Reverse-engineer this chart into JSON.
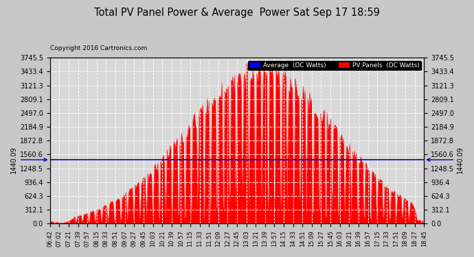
{
  "title": "Total PV Panel Power & Average  Power Sat Sep 17 18:59",
  "copyright": "Copyright 2016 Cartronics.com",
  "average_value": 1440.09,
  "average_label": "1440.09",
  "y_tick_labels": [
    "0.0",
    "312.1",
    "624.3",
    "936.4",
    "1248.5",
    "1560.6",
    "1872.8",
    "2184.9",
    "2497.0",
    "2809.1",
    "3121.3",
    "3433.4",
    "3745.5"
  ],
  "y_tick_values": [
    0.0,
    312.1,
    624.3,
    936.4,
    1248.5,
    1560.6,
    1872.8,
    2184.9,
    2497.0,
    2809.1,
    3121.3,
    3433.4,
    3745.5
  ],
  "x_tick_labels": [
    "06:42",
    "07:02",
    "07:21",
    "07:39",
    "07:57",
    "08:15",
    "08:33",
    "08:51",
    "09:07",
    "09:27",
    "09:45",
    "10:03",
    "10:21",
    "10:39",
    "10:57",
    "11:15",
    "11:33",
    "11:51",
    "12:09",
    "12:27",
    "12:45",
    "13:03",
    "13:21",
    "13:39",
    "13:57",
    "14:15",
    "14:33",
    "14:51",
    "15:09",
    "15:27",
    "15:45",
    "16:03",
    "16:21",
    "16:39",
    "16:57",
    "17:15",
    "17:33",
    "17:51",
    "18:09",
    "18:27",
    "18:45"
  ],
  "bg_color": "#c8c8c8",
  "plot_bg_color": "#d8d8d8",
  "fill_color": "#ff0000",
  "line_color": "#ff0000",
  "avg_line_color": "#0000cc",
  "grid_color": "#ffffff",
  "title_color": "#000000",
  "legend_avg_bg": "#0000ff",
  "legend_pv_bg": "#ff0000",
  "legend_avg_text": "Average  (DC Watts)",
  "legend_pv_text": "PV Panels  (DC Watts)",
  "y_max": 3745.5,
  "y_min": 0.0,
  "figwidth": 6.9,
  "figheight": 3.75,
  "dpi": 100
}
